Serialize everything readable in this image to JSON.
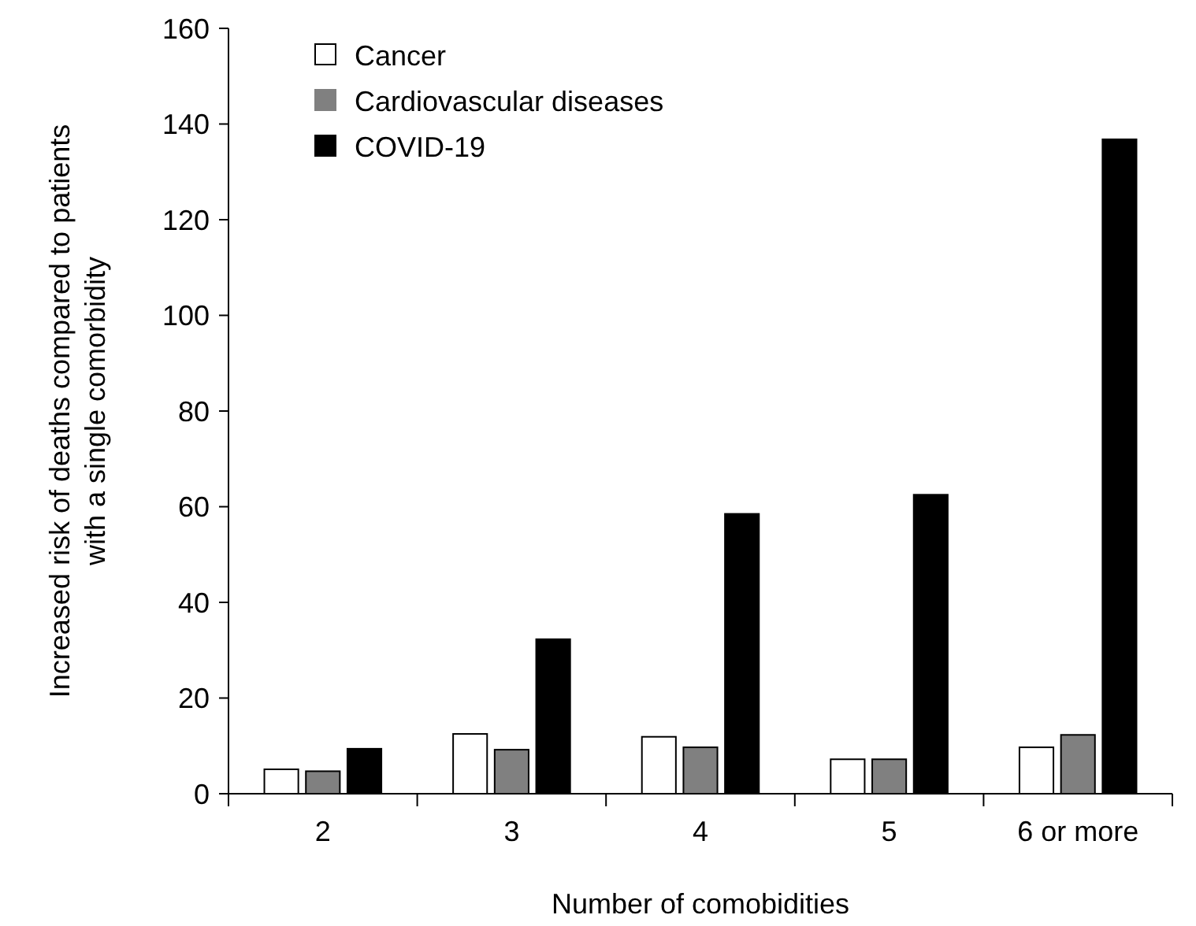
{
  "chart_data": {
    "type": "bar",
    "xlabel": "Number of comobidities",
    "ylabel": "Increased risk of deaths compared to patients with a single comorbidity",
    "categories": [
      "2",
      "3",
      "4",
      "5",
      "6 or more"
    ],
    "series": [
      {
        "name": "Cancer",
        "color": "#ffffff",
        "values": [
          5.1,
          12.5,
          11.9,
          7.2,
          9.7
        ]
      },
      {
        "name": "Cardiovascular diseases",
        "color": "#808080",
        "values": [
          4.7,
          9.2,
          9.7,
          7.2,
          12.3
        ]
      },
      {
        "name": "COVID-19",
        "color": "#000000",
        "values": [
          9.4,
          32.3,
          58.5,
          62.5,
          136.8
        ]
      }
    ],
    "ylim": [
      0,
      160
    ],
    "yticks": [
      0,
      20,
      40,
      60,
      80,
      100,
      120,
      140,
      160
    ],
    "grid": false,
    "legend": "top left"
  }
}
